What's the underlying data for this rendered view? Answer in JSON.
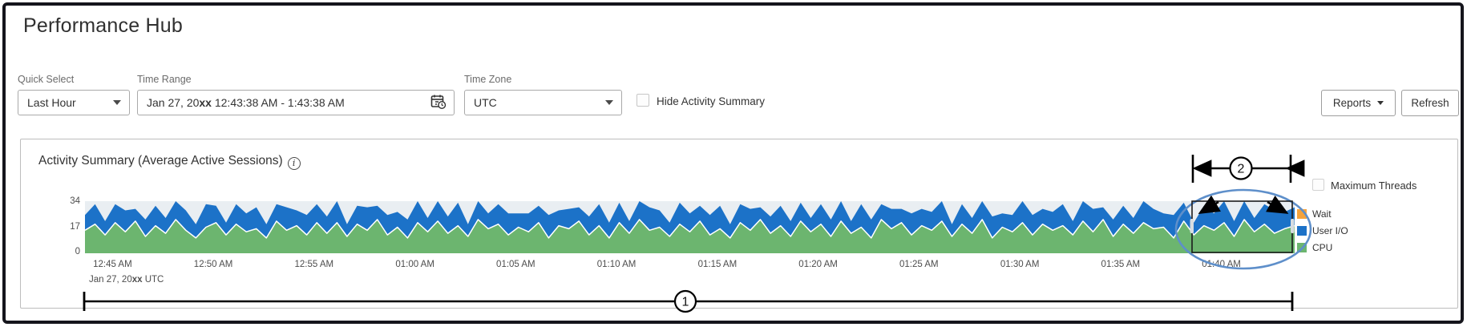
{
  "page": {
    "title": "Performance Hub"
  },
  "toolbar": {
    "quick_select": {
      "label": "Quick Select",
      "value": "Last Hour"
    },
    "time_range": {
      "label": "Time Range",
      "value_prefix": "Jan 27, 20",
      "value_bold": "xx",
      "value_suffix": " 12:43:38 AM - 1:43:38 AM"
    },
    "time_zone": {
      "label": "Time Zone",
      "value": "UTC"
    },
    "hide_activity_summary": {
      "label": "Hide Activity Summary",
      "checked": false
    },
    "reports_button": "Reports",
    "refresh_button": "Refresh"
  },
  "panel": {
    "title": "Activity Summary (Average Active Sessions)",
    "info_icon_glyph": "i",
    "maximum_threads": {
      "label": "Maximum Threads",
      "checked": false
    }
  },
  "annotations": {
    "callout1": "1",
    "callout2": "2",
    "ellipse_color": "#5e8fca"
  },
  "chart_data": {
    "type": "area",
    "stacked": true,
    "title": "Activity Summary (Average Active Sessions)",
    "ylabel": "Average Active Sessions",
    "ylim": [
      0,
      34
    ],
    "yticks": [
      "34",
      "17",
      "0"
    ],
    "grid": false,
    "legend_position": "right",
    "plot_bg": "#e9eef2",
    "time_start": "12:43:38 AM",
    "time_end": "1:43:38 AM",
    "date_note": {
      "prefix": "Jan 27, 20",
      "bold": "xx",
      "suffix": " UTC"
    },
    "tick_labels": [
      "12:45 AM",
      "12:50 AM",
      "12:55 AM",
      "01:00 AM",
      "01:05 AM",
      "01:10 AM",
      "01:15 AM",
      "01:20 AM",
      "01:25 AM",
      "01:30 AM",
      "01:35 AM",
      "01:40 AM"
    ],
    "tick_percents": [
      2.28,
      10.61,
      18.94,
      27.28,
      35.61,
      43.94,
      52.28,
      60.61,
      68.94,
      77.28,
      85.61,
      93.94
    ],
    "legend": [
      {
        "label": "Wait",
        "color": "#f5a33c"
      },
      {
        "label": "User I/O",
        "color": "#1c72c8"
      },
      {
        "label": "CPU",
        "color": "#6cb56f"
      }
    ],
    "series": [
      {
        "name": "CPU",
        "color": "#6cb56f",
        "edge_color": "#ffffff",
        "values": [
          15,
          19,
          12,
          20,
          14,
          21,
          11,
          18,
          13,
          22,
          15,
          10,
          17,
          20,
          12,
          19,
          14,
          16,
          10,
          21,
          15,
          18,
          12,
          20,
          13,
          20,
          11,
          19,
          15,
          22,
          12,
          17,
          10,
          20,
          14,
          21,
          13,
          18,
          11,
          22,
          16,
          19,
          12,
          17,
          14,
          20,
          10,
          18,
          16,
          21,
          12,
          18,
          10,
          20,
          13,
          22,
          15,
          17,
          11,
          19,
          14,
          21,
          12,
          16,
          10,
          20,
          15,
          22,
          13,
          18,
          11,
          21,
          14,
          19,
          11,
          21,
          13,
          17,
          10,
          22,
          16,
          20,
          12,
          18,
          15,
          21,
          11,
          19,
          13,
          22,
          10,
          17,
          14,
          20,
          12,
          19,
          15,
          18,
          12,
          21,
          14,
          22,
          11,
          19,
          13,
          20,
          16,
          17,
          10,
          21,
          12,
          18,
          15,
          20,
          11,
          22,
          14,
          19,
          13,
          16,
          18
        ]
      },
      {
        "name": "User I/O",
        "color": "#1c72c8",
        "values": [
          10,
          13,
          9,
          12,
          14,
          8,
          11,
          13,
          10,
          12,
          13,
          9,
          15,
          11,
          8,
          13,
          12,
          14,
          9,
          11,
          15,
          10,
          13,
          12,
          11,
          14,
          8,
          12,
          15,
          9,
          13,
          10,
          12,
          14,
          9,
          13,
          11,
          15,
          8,
          12,
          10,
          13,
          14,
          9,
          12,
          11,
          15,
          10,
          13,
          9,
          12,
          14,
          10,
          13,
          8,
          12,
          15,
          11,
          9,
          14,
          12,
          10,
          13,
          15,
          9,
          12,
          14,
          8,
          11,
          13,
          10,
          12,
          9,
          13,
          11,
          14,
          8,
          15,
          12,
          10,
          13,
          9,
          14,
          11,
          12,
          15,
          8,
          13,
          10,
          12,
          14,
          9,
          11,
          15,
          13,
          10,
          12,
          14,
          9,
          13,
          15,
          8,
          11,
          12,
          10,
          14,
          13,
          9,
          15,
          12,
          8,
          13,
          11,
          14,
          10,
          12,
          9,
          13,
          15,
          11,
          12
        ]
      },
      {
        "name": "Wait",
        "color": "#f5a33c",
        "values_uniform": 0
      }
    ]
  }
}
